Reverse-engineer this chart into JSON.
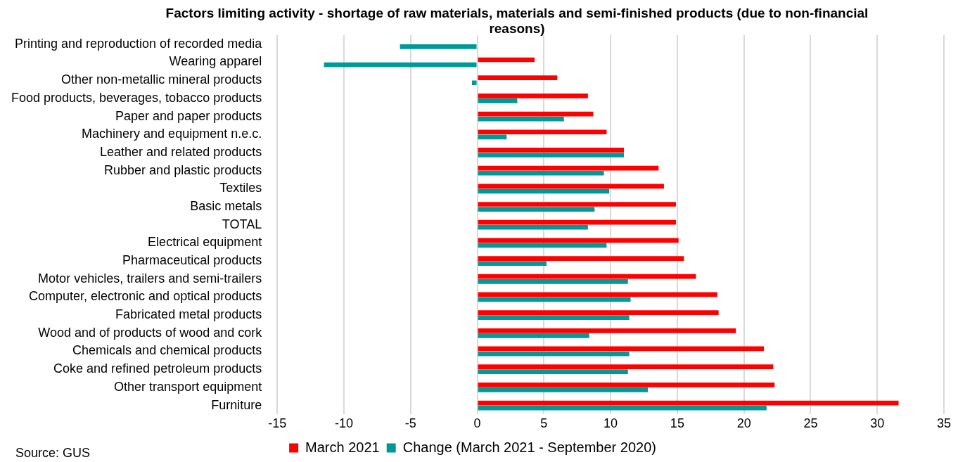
{
  "chart_data": {
    "type": "bar",
    "orientation": "horizontal",
    "title": "Factors limiting activity - shortage of raw materials, materials and semi-finished products (due to non-financial reasons)",
    "categories": [
      "Printing and reproduction of recorded media",
      "Wearing apparel",
      "Other non-metallic mineral products",
      "Food products, beverages, tobacco products",
      "Paper and paper products",
      "Machinery and equipment n.e.c.",
      "Leather and related products",
      "Rubber and plastic products",
      "Textiles",
      "Basic metals",
      "TOTAL",
      "Electrical equipment",
      "Pharmaceutical products",
      "Motor vehicles, trailers and semi-trailers",
      "Computer, electronic and optical products",
      "Fabricated metal products",
      "Wood and of products of wood and cork",
      "Chemicals and chemical products",
      "Coke and refined petroleum products",
      "Other transport equipment",
      "Furniture"
    ],
    "series": [
      {
        "name": "March 2021",
        "color": "#ff0000",
        "values": [
          null,
          4.3,
          6.0,
          8.3,
          8.7,
          9.7,
          11.0,
          13.6,
          14.0,
          14.9,
          14.9,
          15.1,
          15.5,
          16.4,
          18.0,
          18.1,
          19.4,
          21.5,
          22.2,
          22.3,
          31.6
        ]
      },
      {
        "name": "Change (March 2021 - September 2020)",
        "color": "#009999",
        "values": [
          -5.8,
          -11.5,
          -0.4,
          3.0,
          6.5,
          2.2,
          11.0,
          9.5,
          9.9,
          8.8,
          8.3,
          9.7,
          5.2,
          11.3,
          11.5,
          11.4,
          8.4,
          11.4,
          11.3,
          12.8,
          21.7
        ]
      }
    ],
    "xlim": [
      -15,
      35
    ],
    "xticks": [
      -15,
      -10,
      -5,
      0,
      5,
      10,
      15,
      20,
      25,
      30,
      35
    ],
    "grid": "x",
    "legend": "bottom",
    "annotations": [
      "Source: GUS"
    ]
  }
}
